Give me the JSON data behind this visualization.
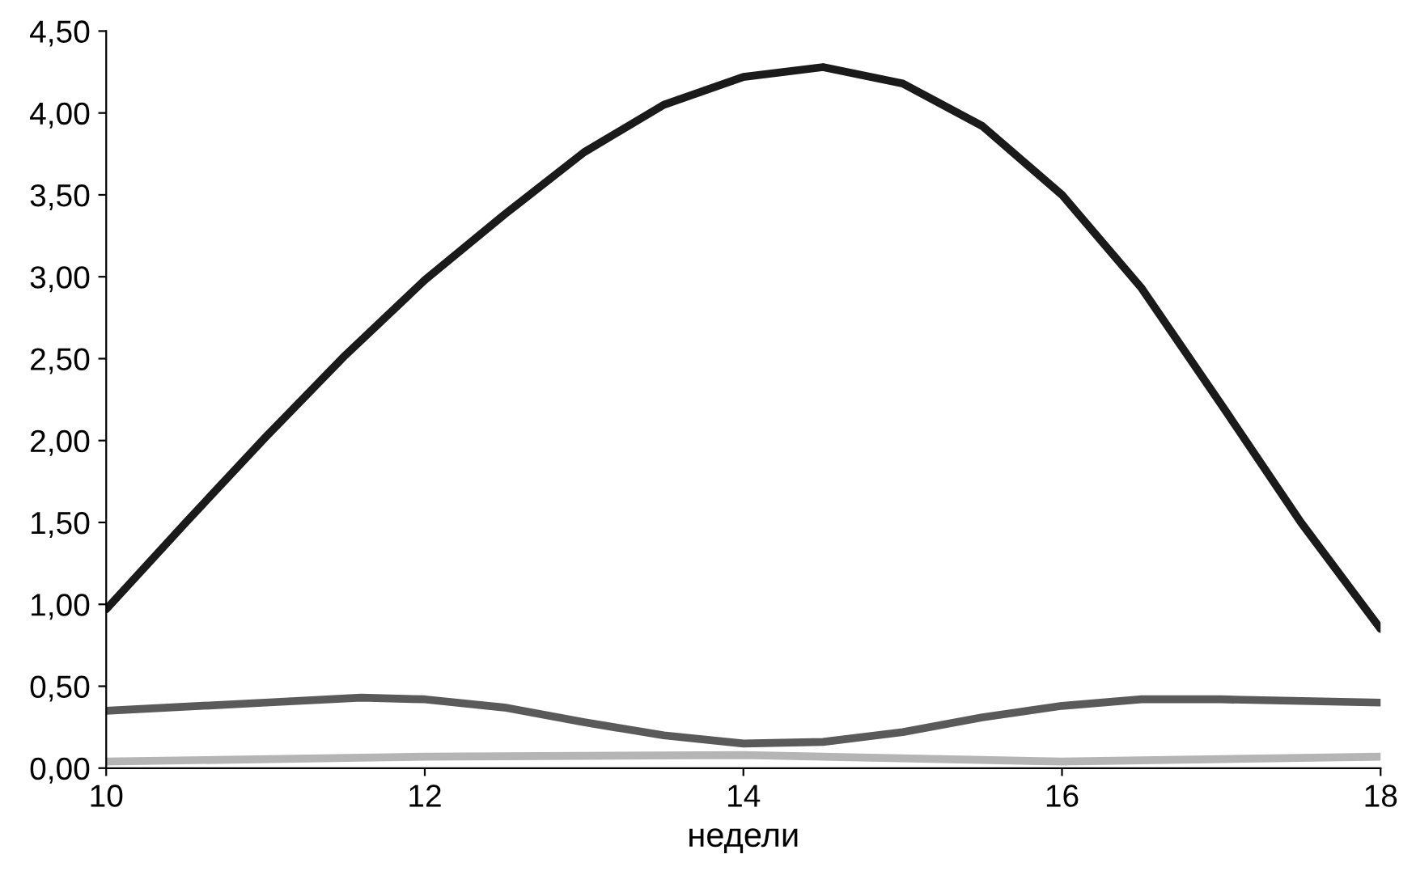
{
  "chart_data": {
    "type": "line",
    "xlabel": "недели",
    "xlim": [
      10,
      18
    ],
    "xticks": [
      10,
      12,
      14,
      16,
      18
    ],
    "ylim": [
      0,
      4.5
    ],
    "yticks": [
      {
        "value": 0,
        "label": "0,00"
      },
      {
        "value": 0.5,
        "label": "0,50"
      },
      {
        "value": 1,
        "label": "1,00"
      },
      {
        "value": 1.5,
        "label": "1,50"
      },
      {
        "value": 2,
        "label": "2,00"
      },
      {
        "value": 2.5,
        "label": "2,50"
      },
      {
        "value": 3,
        "label": "3,00"
      },
      {
        "value": 3.5,
        "label": "3,50"
      },
      {
        "value": 4,
        "label": "4,00"
      },
      {
        "value": 4.5,
        "label": "4,50"
      }
    ],
    "grid": false,
    "marker": "none",
    "line_style": "solid",
    "series": [
      {
        "color": "#1a1a1a",
        "x": [
          10,
          10.5,
          11,
          11.5,
          12,
          12.5,
          13,
          13.5,
          14,
          14.5,
          15,
          15.5,
          16,
          16.5,
          17,
          17.5,
          18
        ],
        "values": [
          0.97,
          1.5,
          2.02,
          2.52,
          2.98,
          3.38,
          3.76,
          4.05,
          4.22,
          4.28,
          4.18,
          3.92,
          3.5,
          2.93,
          2.22,
          1.5,
          0.85
        ]
      },
      {
        "color": "#5a5a5a",
        "x": [
          10,
          11,
          11.6,
          12,
          12.5,
          13,
          13.5,
          14,
          14.5,
          15,
          15.5,
          16,
          16.5,
          17,
          18
        ],
        "values": [
          0.35,
          0.4,
          0.43,
          0.42,
          0.37,
          0.28,
          0.2,
          0.15,
          0.16,
          0.22,
          0.31,
          0.38,
          0.42,
          0.42,
          0.4
        ]
      },
      {
        "color": "#b5b5b5",
        "x": [
          10,
          12,
          14,
          16,
          18
        ],
        "values": [
          0.04,
          0.07,
          0.08,
          0.04,
          0.07
        ]
      }
    ]
  }
}
